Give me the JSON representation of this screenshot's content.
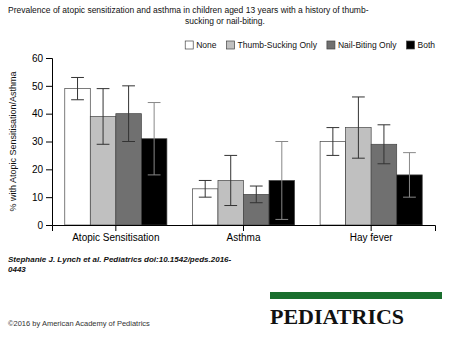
{
  "chart_data": {
    "type": "bar",
    "title": "Prevalence of atopic sensitization and asthma in children aged 13 years with a history of thumb-\nsucking or nail-biting.",
    "y_label": "% with Atopic Sensitisation/Asthma",
    "categories": [
      "Atopic Sensitisation",
      "Asthma",
      "Hay fever"
    ],
    "series": [
      {
        "name": "None",
        "color": "#ffffff",
        "values": [
          49,
          13,
          30
        ],
        "errors": [
          4,
          3,
          5
        ]
      },
      {
        "name": "Thumb-Sucking Only",
        "color": "#c0c0c0",
        "values": [
          39,
          16,
          35
        ],
        "errors": [
          10,
          9,
          11
        ]
      },
      {
        "name": "Nail-Biting Only",
        "color": "#707070",
        "values": [
          40,
          11,
          29
        ],
        "errors": [
          10,
          3,
          7
        ]
      },
      {
        "name": "Both",
        "color": "#000000",
        "values": [
          31,
          16,
          18
        ],
        "errors": [
          13,
          14,
          8
        ]
      }
    ],
    "ylim": [
      0,
      60
    ],
    "yticks": [
      0,
      10,
      20,
      30,
      40,
      50,
      60
    ],
    "legend": "upper right",
    "grid": false,
    "annotations": [
      "Stephanie J. Lynch et al. Pediatrics doi:10.1542/peds.2016-\n0443",
      "©2016 by American Academy of Pediatrics",
      "PEDIATRICS"
    ]
  }
}
